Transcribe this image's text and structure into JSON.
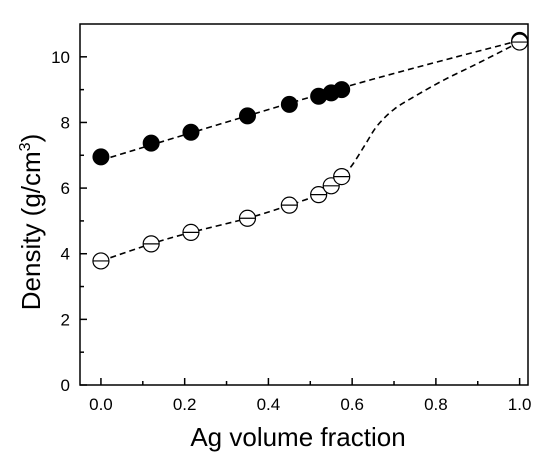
{
  "chart_data": {
    "type": "scatter",
    "xlabel": "Ag volume fraction",
    "ylabel_main": "Density (g/cm",
    "ylabel_sup": "3",
    "ylabel_close": ")",
    "xlim": [
      -0.05,
      1.02
    ],
    "ylim": [
      0,
      11
    ],
    "xticks": [
      "0.0",
      "0.2",
      "0.4",
      "0.6",
      "0.8",
      "1.0"
    ],
    "yticks": [
      "0",
      "2",
      "4",
      "6",
      "8",
      "10"
    ],
    "grid": false,
    "legend": "none",
    "series": [
      {
        "marker": "filled-circle",
        "x": [
          0.0,
          0.12,
          0.215,
          0.35,
          0.45,
          0.52,
          0.55,
          0.575,
          1.0
        ],
        "y": [
          6.95,
          7.37,
          7.7,
          8.2,
          8.55,
          8.8,
          8.9,
          9.0,
          10.5
        ],
        "fit": {
          "x": [
            0.0,
            0.575,
            1.0
          ],
          "y": [
            6.85,
            9.05,
            10.5
          ]
        }
      },
      {
        "marker": "open-circle",
        "x": [
          0.0,
          0.12,
          0.215,
          0.35,
          0.45,
          0.52,
          0.55,
          0.575,
          1.0
        ],
        "y": [
          3.78,
          4.3,
          4.65,
          5.08,
          5.48,
          5.8,
          6.07,
          6.35,
          10.45
        ],
        "fit": {
          "x": [
            0.0,
            0.12,
            0.215,
            0.35,
            0.45,
            0.52,
            0.55,
            0.575,
            0.6,
            0.63,
            0.66,
            0.7,
            0.75,
            0.82,
            0.9,
            1.0
          ],
          "y": [
            3.78,
            4.3,
            4.65,
            5.08,
            5.48,
            5.8,
            6.07,
            6.35,
            6.7,
            7.3,
            7.9,
            8.4,
            8.8,
            9.3,
            9.8,
            10.45
          ]
        }
      }
    ]
  }
}
